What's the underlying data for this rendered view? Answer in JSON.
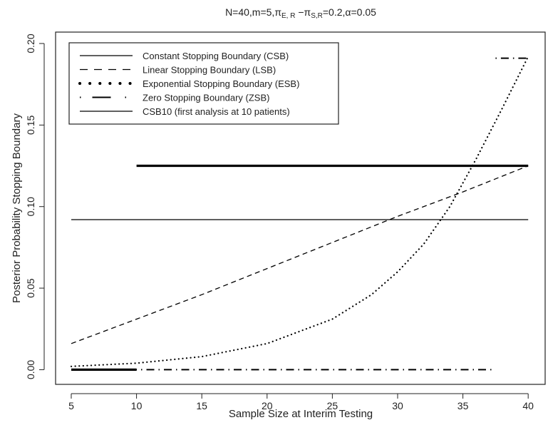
{
  "chart_data": {
    "type": "line",
    "title_parts": {
      "prefix": "N=40,m=5,",
      "pi1": "π",
      "sub1": "E, R",
      "minus": " −",
      "pi2": "π",
      "sub2": "S,R",
      "suffix": "=0.2,α=0.05"
    },
    "xlabel": "Sample Size at Interim Testing",
    "ylabel": "Posterior Probability Stopping Boundary",
    "xlim": [
      3.8,
      41.3
    ],
    "ylim": [
      -0.009,
      0.207
    ],
    "x_ticks": [
      5,
      10,
      15,
      20,
      25,
      30,
      35,
      40
    ],
    "x_tick_labels": [
      "5",
      "10",
      "15",
      "20",
      "25",
      "30",
      "35",
      "40"
    ],
    "y_ticks": [
      0.0,
      0.05,
      0.1,
      0.15,
      0.2
    ],
    "y_tick_labels": [
      "0.00",
      "0.05",
      "0.10",
      "0.15",
      "0.20"
    ],
    "legend_position": "top-left",
    "series": [
      {
        "name": "Constant Stopping Boundary (CSB)",
        "style": "solid",
        "x": [
          5,
          40
        ],
        "y": [
          0.092,
          0.092
        ]
      },
      {
        "name": "Linear Stopping Boundary (LSB)",
        "style": "dashed",
        "x": [
          5,
          10,
          15,
          20,
          25,
          30,
          35,
          40
        ],
        "y": [
          0.016,
          0.031,
          0.046,
          0.062,
          0.078,
          0.094,
          0.109,
          0.125
        ]
      },
      {
        "name": "Exponential Stopping Boundary (ESB)",
        "style": "dotted",
        "x": [
          5,
          10,
          15,
          20,
          25,
          28,
          30,
          32,
          34,
          36,
          38,
          40
        ],
        "y": [
          0.002,
          0.004,
          0.008,
          0.016,
          0.031,
          0.046,
          0.06,
          0.077,
          0.1,
          0.129,
          0.16,
          0.192
        ]
      },
      {
        "name": "Zero Stopping Boundary (ZSB)",
        "style": "dotdash",
        "segments": [
          {
            "x": [
              5,
              37.5
            ],
            "y": [
              0.0,
              0.0
            ]
          },
          {
            "x": [
              37.5,
              40
            ],
            "y": [
              0.191,
              0.191
            ]
          }
        ]
      },
      {
        "name": "CSB10 (first analysis at 10 patients)",
        "style": "solid-thick",
        "segments": [
          {
            "x": [
              5,
              10
            ],
            "y": [
              0.0,
              0.0
            ]
          },
          {
            "x": [
              10,
              40
            ],
            "y": [
              0.125,
              0.125
            ]
          }
        ]
      }
    ]
  }
}
